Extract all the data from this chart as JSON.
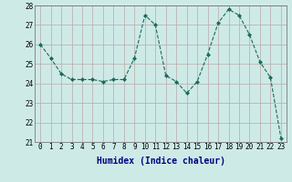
{
  "x": [
    0,
    1,
    2,
    3,
    4,
    5,
    6,
    7,
    8,
    9,
    10,
    11,
    12,
    13,
    14,
    15,
    16,
    17,
    18,
    19,
    20,
    21,
    22,
    23
  ],
  "y": [
    26.0,
    25.3,
    24.5,
    24.2,
    24.2,
    24.2,
    24.1,
    24.2,
    24.2,
    25.3,
    27.5,
    27.0,
    24.4,
    24.1,
    23.5,
    24.1,
    25.5,
    27.1,
    27.8,
    27.5,
    26.5,
    25.1,
    24.3,
    21.2
  ],
  "line_color": "#1a6b5a",
  "marker": "D",
  "marker_size": 2.0,
  "bg_color": "#ceeae7",
  "grid_color_major": "#b8a8a8",
  "grid_color_minor": "#d4c4c4",
  "xlabel": "Humidex (Indice chaleur)",
  "ylim": [
    21,
    28
  ],
  "xlim": [
    -0.5,
    23.5
  ],
  "yticks": [
    21,
    22,
    23,
    24,
    25,
    26,
    27,
    28
  ],
  "xticks": [
    0,
    1,
    2,
    3,
    4,
    5,
    6,
    7,
    8,
    9,
    10,
    11,
    12,
    13,
    14,
    15,
    16,
    17,
    18,
    19,
    20,
    21,
    22,
    23
  ],
  "tick_fontsize": 5.5,
  "xlabel_fontsize": 7.0,
  "xlabel_color": "#000080"
}
